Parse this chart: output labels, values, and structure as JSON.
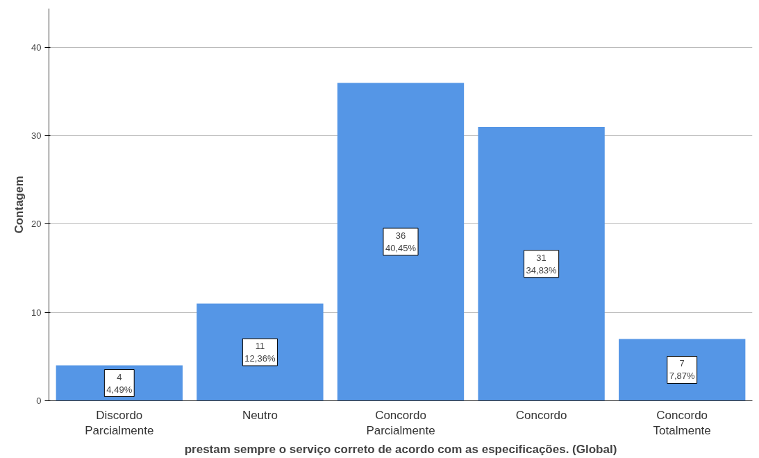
{
  "chart_data": {
    "type": "bar",
    "xlabel": "prestam sempre o serviço correto de acordo com as especificações. (Global)",
    "ylabel": "Contagem",
    "categories": [
      "Discordo Parcialmente",
      "Neutro",
      "Concordo Parcialmente",
      "Concordo",
      "Concordo Totalmente"
    ],
    "values": [
      4,
      11,
      36,
      31,
      7
    ],
    "value_labels": [
      "4\n4,49%",
      "11\n12,36%",
      "36\n40,45%",
      "31\n34,83%",
      "7\n7,87%"
    ],
    "color": "#5596e6",
    "ylim": [
      0,
      44.4
    ],
    "yticks": [
      0,
      10,
      20,
      30,
      40
    ],
    "grid": "y"
  }
}
